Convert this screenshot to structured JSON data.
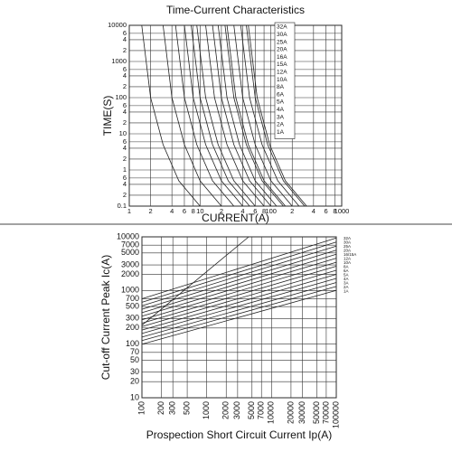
{
  "chart_data": [
    {
      "type": "line",
      "title": "Time-Current Characteristics",
      "x_label": "CURRENT(A)",
      "y_label": "TIME(S)",
      "xscale": "log",
      "yscale": "log",
      "grid": true,
      "legend": "upper right",
      "xlim": [
        1,
        1000
      ],
      "ylim": [
        0.1,
        10000
      ],
      "xticks": [
        1,
        2,
        4,
        6,
        8,
        10,
        {
          "value": 20,
          "label": "2"
        },
        {
          "value": 40,
          "label": "4"
        },
        {
          "value": 60,
          "label": "6"
        },
        {
          "value": 80,
          "label": "8"
        },
        100,
        {
          "value": 200,
          "label": "2"
        },
        {
          "value": 400,
          "label": "4"
        },
        {
          "value": 600,
          "label": "6"
        },
        {
          "value": 800,
          "label": "8"
        },
        1000
      ],
      "yticks": [
        10000,
        {
          "value": 6000,
          "label": "6"
        },
        {
          "value": 4000,
          "label": "4"
        },
        {
          "value": 2000,
          "label": "2"
        },
        1000,
        {
          "value": 600,
          "label": "6"
        },
        {
          "value": 400,
          "label": "4"
        },
        {
          "value": 200,
          "label": "2"
        },
        100,
        {
          "value": 60,
          "label": "6"
        },
        {
          "value": 40,
          "label": "4"
        },
        {
          "value": 20,
          "label": "2"
        },
        10,
        {
          "value": 6,
          "label": "6"
        },
        {
          "value": 4,
          "label": "4"
        },
        {
          "value": 2,
          "label": "2"
        },
        1,
        {
          "value": 0.6,
          "label": "6"
        },
        {
          "value": 0.4,
          "label": "4"
        },
        {
          "value": 0.2,
          "label": "2"
        },
        0.1
      ],
      "series": [
        {
          "name": "32A",
          "color": "#222",
          "x": [
            48,
            64,
            96,
            160,
            320
          ],
          "values": [
            10000,
            100,
            5,
            0.5,
            0.1
          ]
        },
        {
          "name": "30A",
          "color": "#222",
          "x": [
            45,
            60,
            90,
            150,
            300
          ],
          "values": [
            10000,
            100,
            5,
            0.5,
            0.1
          ]
        },
        {
          "name": "25A",
          "color": "#222",
          "x": [
            37.5,
            50,
            75,
            125,
            250
          ],
          "values": [
            10000,
            100,
            5,
            0.5,
            0.1
          ]
        },
        {
          "name": "20A",
          "color": "#222",
          "x": [
            30,
            40,
            60,
            100,
            200
          ],
          "values": [
            10000,
            100,
            5,
            0.5,
            0.1
          ]
        },
        {
          "name": "16A",
          "color": "#222",
          "x": [
            24,
            32,
            48,
            80,
            160
          ],
          "values": [
            10000,
            100,
            5,
            0.5,
            0.1
          ]
        },
        {
          "name": "15A",
          "color": "#222",
          "x": [
            22.5,
            30,
            45,
            75,
            150
          ],
          "values": [
            10000,
            100,
            5,
            0.5,
            0.1
          ]
        },
        {
          "name": "12A",
          "color": "#222",
          "x": [
            18,
            24,
            36,
            60,
            120
          ],
          "values": [
            10000,
            100,
            5,
            0.5,
            0.1
          ]
        },
        {
          "name": "10A",
          "color": "#222",
          "x": [
            15,
            20,
            30,
            50,
            100
          ],
          "values": [
            10000,
            100,
            5,
            0.5,
            0.1
          ]
        },
        {
          "name": "8A",
          "color": "#222",
          "x": [
            12,
            16,
            24,
            40,
            80
          ],
          "values": [
            10000,
            100,
            5,
            0.5,
            0.1
          ]
        },
        {
          "name": "6A",
          "color": "#222",
          "x": [
            9,
            12,
            18,
            30,
            60
          ],
          "values": [
            10000,
            100,
            5,
            0.5,
            0.1
          ]
        },
        {
          "name": "5A",
          "color": "#222",
          "x": [
            7.5,
            10,
            15,
            25,
            50
          ],
          "values": [
            10000,
            100,
            5,
            0.5,
            0.1
          ]
        },
        {
          "name": "4A",
          "color": "#222",
          "x": [
            6,
            8,
            12,
            20,
            40
          ],
          "values": [
            10000,
            100,
            5,
            0.5,
            0.1
          ]
        },
        {
          "name": "3A",
          "color": "#222",
          "x": [
            4.5,
            6,
            9,
            15,
            30
          ],
          "values": [
            10000,
            100,
            5,
            0.5,
            0.1
          ]
        },
        {
          "name": "2A",
          "color": "#222",
          "x": [
            3,
            4,
            6,
            10,
            20
          ],
          "values": [
            10000,
            100,
            5,
            0.5,
            0.1
          ]
        },
        {
          "name": "1A",
          "color": "#222",
          "x": [
            1.5,
            2,
            3,
            5,
            10
          ],
          "values": [
            10000,
            100,
            5,
            0.5,
            0.1
          ]
        }
      ]
    },
    {
      "type": "line",
      "x_label": "Prospection Short Circuit Current Ip(A)",
      "y_label": "Cut-off Current Peak Ic(A)",
      "xscale": "log",
      "yscale": "log",
      "grid": true,
      "legend": "right",
      "xlim": [
        100,
        100000
      ],
      "ylim": [
        10,
        10000
      ],
      "xticks": [
        100,
        200,
        300,
        500,
        1000,
        2000,
        3000,
        5000,
        7000,
        10000,
        20000,
        30000,
        50000,
        70000,
        100000
      ],
      "yticks": [
        10000,
        7000,
        5000,
        3000,
        2000,
        1000,
        700,
        500,
        300,
        200,
        100,
        70,
        50,
        30,
        20,
        10
      ],
      "series": [
        {
          "color": "#222",
          "x": [
            100,
            4450
          ],
          "values": [
            225,
            10000
          ]
        },
        {
          "name": "32A",
          "color": "#222",
          "x": [
            100,
            100000
          ],
          "values": [
            700,
            9500
          ]
        },
        {
          "name": "30A",
          "color": "#222",
          "x": [
            100,
            100000
          ],
          "values": [
            602,
            7990
          ]
        },
        {
          "name": "25A",
          "color": "#222",
          "x": [
            100,
            100000
          ],
          "values": [
            519,
            6720
          ]
        },
        {
          "name": "20A",
          "color": "#222",
          "x": [
            100,
            100000
          ],
          "values": [
            447,
            5650
          ]
        },
        {
          "name": "16/15A",
          "color": "#222",
          "x": [
            100,
            100000
          ],
          "values": [
            385,
            4750
          ]
        },
        {
          "name": "12A",
          "color": "#222",
          "x": [
            100,
            100000
          ],
          "values": [
            331,
            4000
          ]
        },
        {
          "name": "10A",
          "color": "#222",
          "x": [
            100,
            100000
          ],
          "values": [
            285,
            3360
          ]
        },
        {
          "name": "8A",
          "color": "#222",
          "x": [
            100,
            100000
          ],
          "values": [
            246,
            2830
          ]
        },
        {
          "name": "6A",
          "color": "#222",
          "x": [
            100,
            100000
          ],
          "values": [
            213,
            2380
          ]
        },
        {
          "name": "5A",
          "color": "#222",
          "x": [
            100,
            100000
          ],
          "values": [
            183,
            2000
          ]
        },
        {
          "name": "4A",
          "color": "#222",
          "x": [
            100,
            100000
          ],
          "values": [
            158,
            1680
          ]
        },
        {
          "name": "3A",
          "color": "#222",
          "x": [
            100,
            100000
          ],
          "values": [
            135,
            1410
          ]
        },
        {
          "name": "2A",
          "color": "#222",
          "x": [
            100,
            100000
          ],
          "values": [
            116,
            1190
          ]
        },
        {
          "name": "1A",
          "color": "#222",
          "x": [
            100,
            100000
          ],
          "values": [
            100,
            1000
          ]
        }
      ]
    }
  ]
}
